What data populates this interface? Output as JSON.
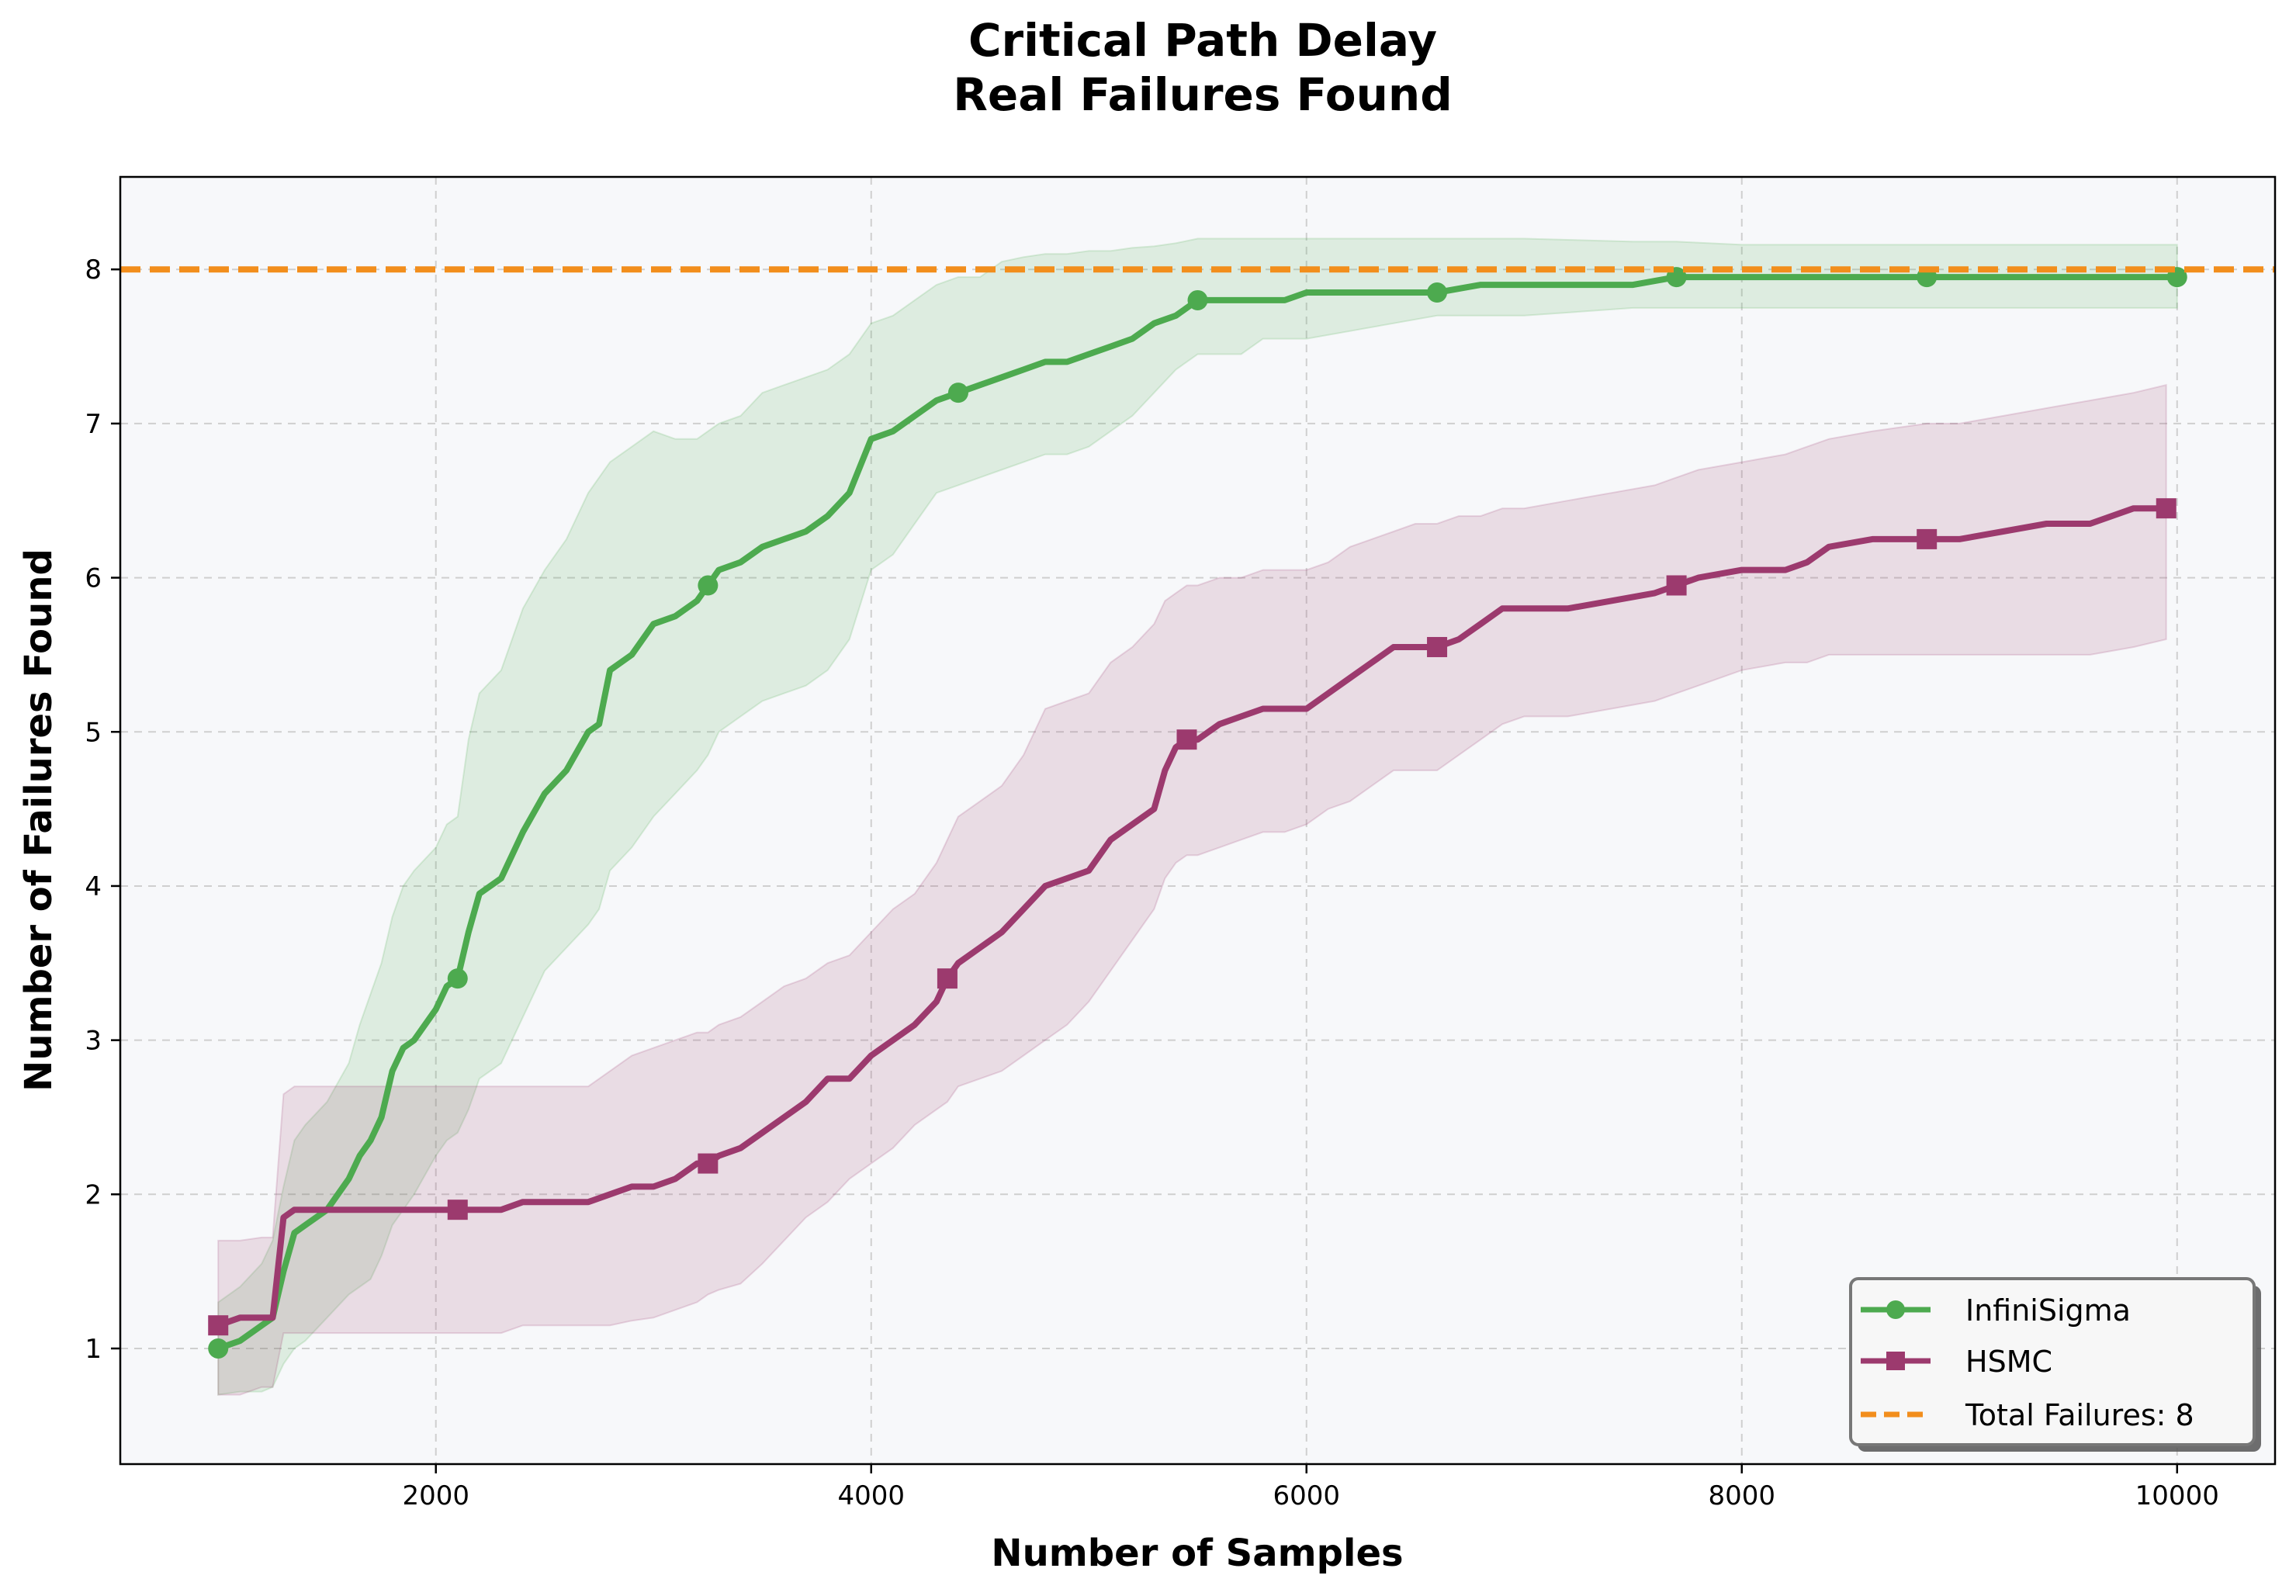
{
  "chart_data": {
    "type": "line",
    "title": [
      "Critical Path Delay",
      "Real Failures Found"
    ],
    "xlabel": "Number of Samples",
    "ylabel": "Number of Failures Found",
    "xlim": [
      550,
      10450
    ],
    "ylim": [
      0.25,
      8.6
    ],
    "xticks": [
      2000,
      4000,
      6000,
      8000,
      10000
    ],
    "yticks": [
      1,
      2,
      3,
      4,
      5,
      6,
      7,
      8
    ],
    "grid": true,
    "legend_position": "bottom-right",
    "series": [
      {
        "name": "InfiniSigma",
        "color": "#4daa4f",
        "marker": "circle",
        "x": [
          1000,
          1100,
          1200,
          1250,
          1300,
          1350,
          1400,
          1500,
          1600,
          1650,
          1700,
          1750,
          1800,
          1850,
          1900,
          2000,
          2050,
          2100,
          2150,
          2200,
          2300,
          2400,
          2500,
          2600,
          2700,
          2750,
          2800,
          2900,
          3000,
          3100,
          3200,
          3250,
          3300,
          3400,
          3500,
          3600,
          3700,
          3800,
          3900,
          4000,
          4100,
          4200,
          4300,
          4400,
          4500,
          4600,
          4700,
          4800,
          4900,
          5000,
          5100,
          5200,
          5300,
          5400,
          5500,
          5600,
          5700,
          5800,
          5900,
          6000,
          6200,
          6400,
          6600,
          6800,
          7000,
          7500,
          7700,
          8000,
          8500,
          8850,
          9000,
          9500,
          10000
        ],
        "values": [
          1.0,
          1.05,
          1.15,
          1.2,
          1.5,
          1.75,
          1.8,
          1.9,
          2.1,
          2.25,
          2.35,
          2.5,
          2.8,
          2.95,
          3.0,
          3.2,
          3.35,
          3.4,
          3.7,
          3.95,
          4.05,
          4.35,
          4.6,
          4.75,
          5.0,
          5.05,
          5.4,
          5.5,
          5.7,
          5.75,
          5.85,
          5.95,
          6.05,
          6.1,
          6.2,
          6.25,
          6.3,
          6.4,
          6.55,
          6.9,
          6.95,
          7.05,
          7.15,
          7.2,
          7.25,
          7.3,
          7.35,
          7.4,
          7.4,
          7.45,
          7.5,
          7.55,
          7.65,
          7.7,
          7.8,
          7.8,
          7.8,
          7.8,
          7.8,
          7.85,
          7.85,
          7.85,
          7.85,
          7.9,
          7.9,
          7.9,
          7.95,
          7.95,
          7.95,
          7.95,
          7.95,
          7.95,
          7.95
        ],
        "lower": [
          0.7,
          0.72,
          0.72,
          0.75,
          0.9,
          1.0,
          1.05,
          1.2,
          1.35,
          1.4,
          1.45,
          1.6,
          1.8,
          1.9,
          2.0,
          2.25,
          2.35,
          2.4,
          2.55,
          2.75,
          2.85,
          3.15,
          3.45,
          3.6,
          3.75,
          3.85,
          4.1,
          4.25,
          4.45,
          4.6,
          4.75,
          4.85,
          5.0,
          5.1,
          5.2,
          5.25,
          5.3,
          5.4,
          5.6,
          6.05,
          6.15,
          6.35,
          6.55,
          6.6,
          6.65,
          6.7,
          6.75,
          6.8,
          6.8,
          6.85,
          6.95,
          7.05,
          7.2,
          7.35,
          7.45,
          7.45,
          7.45,
          7.55,
          7.55,
          7.55,
          7.6,
          7.65,
          7.7,
          7.7,
          7.7,
          7.75,
          7.75,
          7.75,
          7.75,
          7.75,
          7.75,
          7.75,
          7.75
        ],
        "upper": [
          1.3,
          1.4,
          1.55,
          1.7,
          2.05,
          2.35,
          2.45,
          2.6,
          2.85,
          3.1,
          3.3,
          3.5,
          3.8,
          4.0,
          4.1,
          4.25,
          4.4,
          4.45,
          4.95,
          5.25,
          5.4,
          5.8,
          6.05,
          6.25,
          6.55,
          6.65,
          6.75,
          6.85,
          6.95,
          6.9,
          6.9,
          6.95,
          7.0,
          7.05,
          7.2,
          7.25,
          7.3,
          7.35,
          7.45,
          7.65,
          7.7,
          7.8,
          7.9,
          7.95,
          7.95,
          8.05,
          8.08,
          8.1,
          8.1,
          8.12,
          8.12,
          8.14,
          8.15,
          8.17,
          8.2,
          8.2,
          8.2,
          8.2,
          8.2,
          8.2,
          8.2,
          8.2,
          8.2,
          8.2,
          8.2,
          8.18,
          8.18,
          8.16,
          8.16,
          8.16,
          8.16,
          8.16,
          8.16
        ]
      },
      {
        "name": "HSMC",
        "color": "#9c3a6e",
        "marker": "square",
        "x": [
          1000,
          1100,
          1200,
          1250,
          1300,
          1350,
          1400,
          1500,
          1600,
          1800,
          2000,
          2100,
          2200,
          2300,
          2400,
          2500,
          2600,
          2700,
          2800,
          2900,
          3000,
          3100,
          3200,
          3250,
          3300,
          3400,
          3500,
          3600,
          3700,
          3800,
          3900,
          4000,
          4100,
          4200,
          4300,
          4350,
          4400,
          4500,
          4600,
          4700,
          4800,
          4900,
          5000,
          5100,
          5200,
          5300,
          5350,
          5400,
          5450,
          5500,
          5600,
          5700,
          5800,
          5900,
          6000,
          6100,
          6200,
          6300,
          6400,
          6500,
          6600,
          6700,
          6800,
          6900,
          7000,
          7200,
          7400,
          7600,
          7700,
          7800,
          8000,
          8200,
          8300,
          8400,
          8600,
          8850,
          9000,
          9200,
          9400,
          9600,
          9800,
          9950
        ],
        "values": [
          1.15,
          1.2,
          1.2,
          1.2,
          1.85,
          1.9,
          1.9,
          1.9,
          1.9,
          1.9,
          1.9,
          1.9,
          1.9,
          1.9,
          1.95,
          1.95,
          1.95,
          1.95,
          2.0,
          2.05,
          2.05,
          2.1,
          2.2,
          2.2,
          2.25,
          2.3,
          2.4,
          2.5,
          2.6,
          2.75,
          2.75,
          2.9,
          3.0,
          3.1,
          3.25,
          3.4,
          3.5,
          3.6,
          3.7,
          3.85,
          4.0,
          4.05,
          4.1,
          4.3,
          4.4,
          4.5,
          4.75,
          4.9,
          4.95,
          4.95,
          5.05,
          5.1,
          5.15,
          5.15,
          5.15,
          5.25,
          5.35,
          5.45,
          5.55,
          5.55,
          5.55,
          5.6,
          5.7,
          5.8,
          5.8,
          5.8,
          5.85,
          5.9,
          5.95,
          6.0,
          6.05,
          6.05,
          6.1,
          6.2,
          6.25,
          6.25,
          6.25,
          6.3,
          6.35,
          6.35,
          6.45,
          6.45
        ],
        "lower": [
          0.7,
          0.7,
          0.75,
          0.75,
          1.1,
          1.1,
          1.1,
          1.1,
          1.1,
          1.1,
          1.1,
          1.1,
          1.1,
          1.1,
          1.15,
          1.15,
          1.15,
          1.15,
          1.15,
          1.18,
          1.2,
          1.25,
          1.3,
          1.35,
          1.38,
          1.42,
          1.55,
          1.7,
          1.85,
          1.95,
          2.1,
          2.2,
          2.3,
          2.45,
          2.55,
          2.6,
          2.7,
          2.75,
          2.8,
          2.9,
          3.0,
          3.1,
          3.25,
          3.45,
          3.65,
          3.85,
          4.05,
          4.15,
          4.2,
          4.2,
          4.25,
          4.3,
          4.35,
          4.35,
          4.4,
          4.5,
          4.55,
          4.65,
          4.75,
          4.75,
          4.75,
          4.85,
          4.95,
          5.05,
          5.1,
          5.1,
          5.15,
          5.2,
          5.25,
          5.3,
          5.4,
          5.45,
          5.45,
          5.5,
          5.5,
          5.5,
          5.5,
          5.5,
          5.5,
          5.5,
          5.55,
          5.6
        ],
        "upper": [
          1.7,
          1.7,
          1.72,
          1.72,
          2.65,
          2.7,
          2.7,
          2.7,
          2.7,
          2.7,
          2.7,
          2.7,
          2.7,
          2.7,
          2.7,
          2.7,
          2.7,
          2.7,
          2.8,
          2.9,
          2.95,
          3.0,
          3.05,
          3.05,
          3.1,
          3.15,
          3.25,
          3.35,
          3.4,
          3.5,
          3.55,
          3.7,
          3.85,
          3.95,
          4.15,
          4.3,
          4.45,
          4.55,
          4.65,
          4.85,
          5.15,
          5.2,
          5.25,
          5.45,
          5.55,
          5.7,
          5.85,
          5.9,
          5.95,
          5.95,
          6.0,
          6.0,
          6.05,
          6.05,
          6.05,
          6.1,
          6.2,
          6.25,
          6.3,
          6.35,
          6.35,
          6.4,
          6.4,
          6.45,
          6.45,
          6.5,
          6.55,
          6.6,
          6.65,
          6.7,
          6.75,
          6.8,
          6.85,
          6.9,
          6.95,
          7.0,
          7.0,
          7.05,
          7.1,
          7.15,
          7.2,
          7.25
        ]
      }
    ],
    "reference_line": {
      "name": "Total Failures: 8",
      "value": 8,
      "color": "#f28e1c",
      "style": "dashed"
    },
    "legend": [
      "InfiniSigma",
      "HSMC",
      "Total Failures: 8"
    ]
  }
}
